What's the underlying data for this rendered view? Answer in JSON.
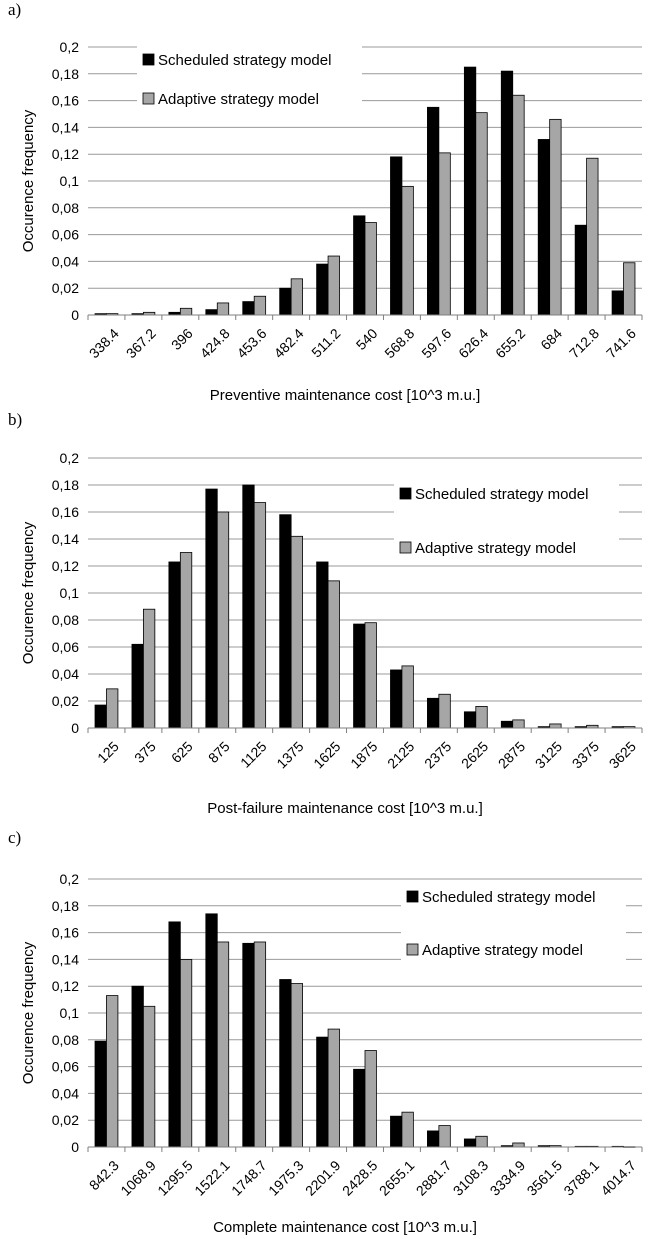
{
  "colors": {
    "scheduled": "#000000",
    "adaptive": "#a6a6a6",
    "grid": "#999999",
    "axis": "#7f7f7f"
  },
  "chart_data": [
    {
      "type": "bar",
      "panel_label": "a)",
      "title": "",
      "xlabel": "Preventive maintenance cost [10^3 m.u.]",
      "ylabel": "Occurence frequency",
      "ylim": [
        0,
        0.2
      ],
      "yticks": [
        "0",
        "0,02",
        "0,04",
        "0,06",
        "0,08",
        "0,1",
        "0,12",
        "0,14",
        "0,16",
        "0,18",
        "0,2"
      ],
      "grid": true,
      "legend_position": "top-left",
      "categories": [
        "338.4",
        "367.2",
        "396",
        "424.8",
        "453.6",
        "482.4",
        "511.2",
        "540",
        "568.8",
        "597.6",
        "626.4",
        "655.2",
        "684",
        "712.8",
        "741.6"
      ],
      "series": [
        {
          "name": "Scheduled strategy model",
          "values": [
            0.001,
            0.001,
            0.002,
            0.004,
            0.01,
            0.02,
            0.038,
            0.074,
            0.118,
            0.155,
            0.185,
            0.182,
            0.131,
            0.067,
            0.018
          ]
        },
        {
          "name": "Adaptive strategy model",
          "values": [
            0.001,
            0.002,
            0.005,
            0.009,
            0.014,
            0.027,
            0.044,
            0.069,
            0.096,
            0.121,
            0.151,
            0.164,
            0.146,
            0.117,
            0.039
          ]
        }
      ]
    },
    {
      "type": "bar",
      "panel_label": "b)",
      "title": "",
      "xlabel": "Post-failure maintenance cost [10^3 m.u.]",
      "ylabel": "Occurence frequency",
      "ylim": [
        0,
        0.2
      ],
      "yticks": [
        "0",
        "0,02",
        "0,04",
        "0,06",
        "0,08",
        "0,1",
        "0,12",
        "0,14",
        "0,16",
        "0,18",
        "0,2"
      ],
      "grid": true,
      "legend_position": "top-right",
      "categories": [
        "125",
        "375",
        "625",
        "875",
        "1125",
        "1375",
        "1625",
        "1875",
        "2125",
        "2375",
        "2625",
        "2875",
        "3125",
        "3375",
        "3625"
      ],
      "series": [
        {
          "name": "Scheduled strategy model",
          "values": [
            0.017,
            0.062,
            0.123,
            0.177,
            0.18,
            0.158,
            0.123,
            0.077,
            0.043,
            0.022,
            0.012,
            0.005,
            0.001,
            0.001,
            0.001
          ]
        },
        {
          "name": "Adaptive strategy model",
          "values": [
            0.029,
            0.088,
            0.13,
            0.16,
            0.167,
            0.142,
            0.109,
            0.078,
            0.046,
            0.025,
            0.016,
            0.006,
            0.003,
            0.002,
            0.001
          ]
        }
      ]
    },
    {
      "type": "bar",
      "panel_label": "c)",
      "title": "",
      "xlabel": "Complete maintenance cost [10^3 m.u.]",
      "ylabel": "Occurence frequency",
      "ylim": [
        0,
        0.2
      ],
      "yticks": [
        "0",
        "0,02",
        "0,04",
        "0,06",
        "0,08",
        "0,1",
        "0,12",
        "0,14",
        "0,16",
        "0,18",
        "0,2"
      ],
      "grid": true,
      "legend_position": "top-right",
      "categories": [
        "842.3",
        "1068.9",
        "1295.5",
        "1522.1",
        "1748.7",
        "1975.3",
        "2201.9",
        "2428.5",
        "2655.1",
        "2881.7",
        "3108.3",
        "3334.9",
        "3561.5",
        "3788.1",
        "4014.7"
      ],
      "series": [
        {
          "name": "Scheduled strategy model",
          "values": [
            0.079,
            0.12,
            0.168,
            0.174,
            0.152,
            0.125,
            0.082,
            0.058,
            0.023,
            0.012,
            0.006,
            0.001,
            0.001,
            0.0005,
            0.0005
          ]
        },
        {
          "name": "Adaptive strategy model",
          "values": [
            0.113,
            0.105,
            0.14,
            0.153,
            0.153,
            0.122,
            0.088,
            0.072,
            0.026,
            0.016,
            0.008,
            0.003,
            0.001,
            0.0005,
            0.0002
          ]
        }
      ]
    }
  ]
}
